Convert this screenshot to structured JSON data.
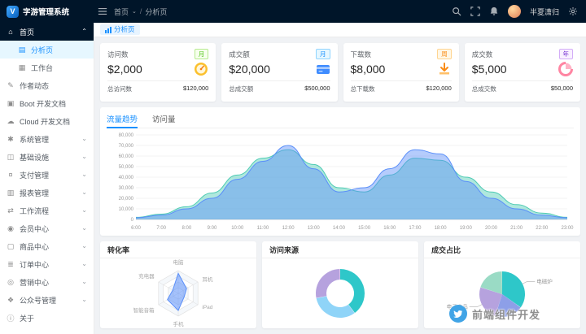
{
  "app": {
    "name": "字游管理系统"
  },
  "topbar": {
    "breadcrumb_home": "首页",
    "breadcrumb_current": "分析页",
    "user_name": "半夏潇归"
  },
  "tabbar": {
    "active_tab": "分析页"
  },
  "sidebar": {
    "items": [
      {
        "label": "首页",
        "icon": "home-icon",
        "type": "open-root"
      },
      {
        "label": "分析页",
        "icon": "analysis-icon",
        "type": "child-active"
      },
      {
        "label": "工作台",
        "icon": "workbench-icon",
        "type": "child"
      },
      {
        "label": "作者动态",
        "icon": "activity-icon",
        "type": "leaf"
      },
      {
        "label": "Boot 开发文档",
        "icon": "doc-icon",
        "type": "leaf"
      },
      {
        "label": "Cloud 开发文档",
        "icon": "cloud-icon",
        "type": "leaf"
      },
      {
        "label": "系统管理",
        "icon": "system-icon",
        "type": "group"
      },
      {
        "label": "基础设施",
        "icon": "infra-icon",
        "type": "group"
      },
      {
        "label": "支付管理",
        "icon": "payment-icon",
        "type": "group"
      },
      {
        "label": "报表管理",
        "icon": "report-icon",
        "type": "group"
      },
      {
        "label": "工作流程",
        "icon": "workflow-icon",
        "type": "group"
      },
      {
        "label": "会员中心",
        "icon": "member-icon",
        "type": "group"
      },
      {
        "label": "商品中心",
        "icon": "goods-icon",
        "type": "group"
      },
      {
        "label": "订单中心",
        "icon": "order-icon",
        "type": "group"
      },
      {
        "label": "营销中心",
        "icon": "marketing-icon",
        "type": "group"
      },
      {
        "label": "公众号管理",
        "icon": "wechat-icon",
        "type": "group"
      },
      {
        "label": "关于",
        "icon": "about-icon",
        "type": "leaf"
      }
    ]
  },
  "stat_cards": [
    {
      "title": "访问数",
      "badge": "月",
      "badge_color": "green",
      "value": "$2,000",
      "icon": "visit-gauge-icon",
      "footer_label": "总访问数",
      "footer_value": "$120,000"
    },
    {
      "title": "成交额",
      "badge": "月",
      "badge_color": "blue",
      "value": "$20,000",
      "icon": "money-card-icon",
      "footer_label": "总成交额",
      "footer_value": "$500,000"
    },
    {
      "title": "下载数",
      "badge": "周",
      "badge_color": "orange",
      "value": "$8,000",
      "icon": "download-icon",
      "footer_label": "总下载数",
      "footer_value": "$120,000"
    },
    {
      "title": "成交数",
      "badge": "年",
      "badge_color": "purple",
      "value": "$5,000",
      "icon": "deal-pie-icon",
      "footer_label": "总成交数",
      "footer_value": "$50,000"
    }
  ],
  "trend_card": {
    "tabs": [
      {
        "label": "流量趋势",
        "active": true
      },
      {
        "label": "访问量",
        "active": false
      }
    ]
  },
  "bottom_cards": {
    "radar_title": "转化率",
    "donut_title": "访问来源",
    "pie_title": "成交占比"
  },
  "chart_data": [
    {
      "type": "area",
      "title": "流量趋势",
      "x": [
        "6:00",
        "7:00",
        "8:00",
        "9:00",
        "10:00",
        "11:00",
        "12:00",
        "13:00",
        "14:00",
        "15:00",
        "16:00",
        "17:00",
        "18:00",
        "19:00",
        "20:00",
        "21:00",
        "22:00",
        "23:00"
      ],
      "series": [
        {
          "name": "teal",
          "color": "#4ecbb4",
          "values": [
            2000,
            5000,
            12000,
            25000,
            42000,
            58000,
            66000,
            52000,
            30000,
            26000,
            42000,
            58000,
            56000,
            40000,
            26000,
            14000,
            6000,
            2000
          ]
        },
        {
          "name": "blue",
          "color": "#5b8ff9",
          "values": [
            1500,
            4000,
            10000,
            20000,
            38000,
            55000,
            70000,
            48000,
            26000,
            30000,
            48000,
            66000,
            62000,
            36000,
            20000,
            10000,
            4000,
            1500
          ]
        }
      ],
      "ylim": [
        0,
        80000
      ],
      "ytick_step": 10000,
      "grid": true,
      "legend": "none"
    },
    {
      "type": "radar",
      "title": "转化率",
      "axes": [
        "电脑",
        "耳机",
        "iPad",
        "手机",
        "智能音箱",
        "充电器"
      ],
      "max": 100,
      "values": [
        88,
        42,
        30,
        75,
        55,
        28
      ],
      "color": "#5b8ff9"
    },
    {
      "type": "donut",
      "title": "访问来源",
      "slices": [
        {
          "value": 40,
          "color": "#2ec7c9"
        },
        {
          "value": 32,
          "color": "#8fd4f8"
        },
        {
          "value": 28,
          "color": "#b6a2de"
        }
      ]
    },
    {
      "type": "pie",
      "title": "成交占比",
      "slices": [
        {
          "label": "电磁炉",
          "value": 35,
          "color": "#2ec7c9"
        },
        {
          "label": "",
          "value": 20,
          "color": "#8d9fe8"
        },
        {
          "label": "电子产品",
          "value": 25,
          "color": "#b6a2de"
        },
        {
          "label": "",
          "value": 20,
          "color": "#9adbc5"
        }
      ]
    }
  ],
  "watermark": {
    "text": "前端组件开发"
  }
}
